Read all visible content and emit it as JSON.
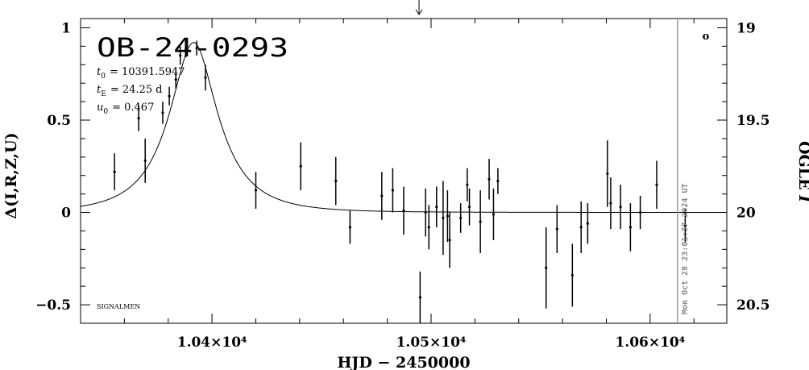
{
  "title": "OB-24-0293",
  "params": {
    "t0_sym": "t",
    "t0_sub": "0",
    "t0_val": "= 10391.5947",
    "tE_sym": "t",
    "tE_sub": "E",
    "tE_val": "= 24.25 d",
    "u0_sym": "u",
    "u0_sub": "0",
    "u0_val": "= 0.467"
  },
  "signature": "SIGNALMEN",
  "timestamp": "Mon Oct 28 23:01:37 2024 UT",
  "right_marker": "o",
  "xlabel": "HJD − 2450000",
  "ylabel_left": "Δ(I,R,Z,U)",
  "ylabel_right_text": "OGLE ",
  "ylabel_right_italic": "I",
  "chart_data": {
    "type": "scatter",
    "xlim": [
      10340,
      10635
    ],
    "ylim_left": [
      -0.6,
      1.05
    ],
    "ylim_right": [
      20.6,
      18.95
    ],
    "x_ticks": [
      {
        "value": 10400,
        "label": "1.04×10⁴"
      },
      {
        "value": 10500,
        "label": "1.05×10⁴"
      },
      {
        "value": 10600,
        "label": "1.06×10⁴"
      }
    ],
    "y_ticks_left": [
      {
        "value": 1,
        "label": "1"
      },
      {
        "value": 0.5,
        "label": "0.5"
      },
      {
        "value": 0,
        "label": "0"
      },
      {
        "value": -0.5,
        "label": "−0.5"
      }
    ],
    "y_ticks_right": [
      {
        "value": 19,
        "label": "19"
      },
      {
        "value": 19.5,
        "label": "19.5"
      },
      {
        "value": 20,
        "label": "20"
      },
      {
        "value": 20.5,
        "label": "20.5"
      }
    ],
    "arrow_x": 10494.5,
    "date_line_x": 10612.5,
    "model": {
      "t0": 10391.5947,
      "tE": 24.25,
      "u0": 0.467,
      "peak": 0.92
    },
    "points": [
      {
        "x": 10355.5,
        "y": 0.22,
        "e": 0.1
      },
      {
        "x": 10366.5,
        "y": 0.51,
        "e": 0.07
      },
      {
        "x": 10369.5,
        "y": 0.28,
        "e": 0.12
      },
      {
        "x": 10377.5,
        "y": 0.54,
        "e": 0.06
      },
      {
        "x": 10380.5,
        "y": 0.63,
        "e": 0.05
      },
      {
        "x": 10383.5,
        "y": 0.72,
        "e": 0.05
      },
      {
        "x": 10385.5,
        "y": 0.85,
        "e": 0.05
      },
      {
        "x": 10388.0,
        "y": 0.88,
        "e": 0.04
      },
      {
        "x": 10393.0,
        "y": 0.89,
        "e": 0.04
      },
      {
        "x": 10397.0,
        "y": 0.73,
        "e": 0.07
      },
      {
        "x": 10420.0,
        "y": 0.12,
        "e": 0.1
      },
      {
        "x": 10440.5,
        "y": 0.25,
        "e": 0.13
      },
      {
        "x": 10456.5,
        "y": 0.17,
        "e": 0.13
      },
      {
        "x": 10463.0,
        "y": -0.08,
        "e": 0.09
      },
      {
        "x": 10477.5,
        "y": 0.09,
        "e": 0.13
      },
      {
        "x": 10482.5,
        "y": 0.12,
        "e": 0.12
      },
      {
        "x": 10487.5,
        "y": 0.01,
        "e": 0.13
      },
      {
        "x": 10495.0,
        "y": -0.46,
        "e": 0.14
      },
      {
        "x": 10497.5,
        "y": 0.0,
        "e": 0.13
      },
      {
        "x": 10499.0,
        "y": -0.08,
        "e": 0.12
      },
      {
        "x": 10502.5,
        "y": 0.03,
        "e": 0.11
      },
      {
        "x": 10505.5,
        "y": -0.03,
        "e": 0.2
      },
      {
        "x": 10507.5,
        "y": -0.02,
        "e": 0.14
      },
      {
        "x": 10508.5,
        "y": -0.15,
        "e": 0.15
      },
      {
        "x": 10513.5,
        "y": -0.03,
        "e": 0.08
      },
      {
        "x": 10516.5,
        "y": 0.15,
        "e": 0.09
      },
      {
        "x": 10517.5,
        "y": 0.03,
        "e": 0.1
      },
      {
        "x": 10522.5,
        "y": -0.05,
        "e": 0.17
      },
      {
        "x": 10526.5,
        "y": 0.18,
        "e": 0.11
      },
      {
        "x": 10528.5,
        "y": -0.01,
        "e": 0.14
      },
      {
        "x": 10530.5,
        "y": 0.17,
        "e": 0.07
      },
      {
        "x": 10552.5,
        "y": -0.3,
        "e": 0.22
      },
      {
        "x": 10557.5,
        "y": -0.09,
        "e": 0.13
      },
      {
        "x": 10564.5,
        "y": -0.34,
        "e": 0.17
      },
      {
        "x": 10568.5,
        "y": -0.08,
        "e": 0.14
      },
      {
        "x": 10571.5,
        "y": -0.06,
        "e": 0.11
      },
      {
        "x": 10580.5,
        "y": 0.21,
        "e": 0.18
      },
      {
        "x": 10582.0,
        "y": 0.05,
        "e": 0.14
      },
      {
        "x": 10586.5,
        "y": 0.03,
        "e": 0.12
      },
      {
        "x": 10591.0,
        "y": -0.08,
        "e": 0.13
      },
      {
        "x": 10595.5,
        "y": 0.0,
        "e": 0.09
      },
      {
        "x": 10603.0,
        "y": 0.15,
        "e": 0.13
      },
      {
        "x": 10616.0,
        "y": -0.07,
        "e": 0.09
      }
    ]
  }
}
